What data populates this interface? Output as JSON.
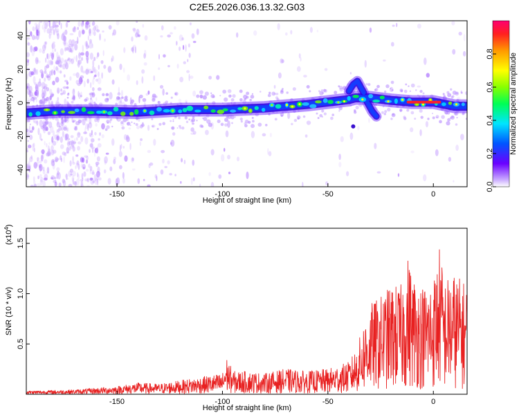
{
  "title": "C2E5.2026.036.13.32.G03",
  "colors": {
    "snr_line": "#e82020",
    "ridge_core": "#ff1e2a",
    "speckle": "#c9a6ff"
  },
  "chart_data": [
    {
      "type": "heatmap",
      "xlabel": "Height of straight line (km)",
      "ylabel": "Frequency (Hz)",
      "xlim": [
        -193,
        16
      ],
      "ylim": [
        -50,
        49
      ],
      "xticks": [
        -150,
        -100,
        -50,
        0
      ],
      "yticks": [
        -40,
        -20,
        0,
        20,
        40
      ],
      "ridge": {
        "x": [
          -193,
          -180,
          -160,
          -140,
          -120,
          -100,
          -80,
          -60,
          -50,
          -40,
          -37,
          -30,
          -20,
          -10,
          0,
          10,
          16
        ],
        "y": [
          -6,
          -5,
          -5,
          -5.5,
          -4,
          -4,
          -3,
          -1,
          0.5,
          2,
          3,
          3,
          1.5,
          0.5,
          0.5,
          -2,
          -2
        ]
      },
      "branches": [
        {
          "x": [
            -40,
            -38,
            -36,
            -33
          ],
          "y": [
            7,
            11,
            13,
            6
          ]
        },
        {
          "x": [
            -32,
            -29,
            -27
          ],
          "y": [
            2,
            -5,
            -8
          ]
        }
      ],
      "colorbar": {
        "label": "Normalized spectral amplitude",
        "range": [
          0,
          1
        ],
        "ticks": [
          0.0,
          0.2,
          0.4,
          0.6,
          0.8
        ],
        "tick_labels": [
          "0.0",
          "0.2",
          "0.4",
          "0.6",
          "0.8"
        ]
      }
    },
    {
      "type": "line",
      "xlabel": "Height of straight line (km)",
      "ylabel": "SNR (10 * v/v)",
      "scale_label": "(x10",
      "scale_exp": "4",
      "scale_close": ")",
      "xlim": [
        -193,
        16
      ],
      "ylim": [
        0,
        1.65
      ],
      "xticks": [
        -150,
        -100,
        -50,
        0
      ],
      "yticks": [
        0.5,
        1.0,
        1.5
      ],
      "ytick_labels": [
        "0.5",
        "1.0",
        "1.5"
      ],
      "series": [
        {
          "x": [
            -193,
            -170,
            -150,
            -140,
            -130,
            -120,
            -110,
            -100,
            -98,
            -95,
            -90,
            -80,
            -70,
            -60,
            -50,
            -40,
            -36,
            -33,
            -30,
            -25,
            -20,
            -15,
            -12,
            -10,
            -5,
            0,
            3,
            5,
            10,
            16
          ],
          "y": [
            0.03,
            0.04,
            0.07,
            0.1,
            0.09,
            0.12,
            0.15,
            0.18,
            0.32,
            0.2,
            0.2,
            0.18,
            0.22,
            0.2,
            0.22,
            0.28,
            0.42,
            0.62,
            0.78,
            0.85,
            0.95,
            0.95,
            1.2,
            1.05,
            0.95,
            1.0,
            1.3,
            1.0,
            1.05,
            0.95
          ]
        }
      ]
    }
  ]
}
